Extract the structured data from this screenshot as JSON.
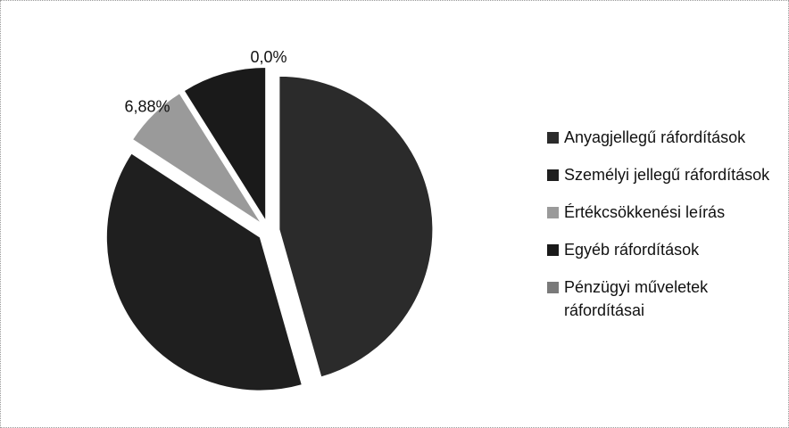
{
  "chart_data": {
    "type": "pie",
    "categories": [
      "Anyagjellegű ráfordítások",
      "Személyi jellegű ráfordítások",
      "Értékcsökkenési leírás",
      "Egyéb ráfordítások",
      "Pénzügyi műveletek ráfordításai"
    ],
    "values": [
      45.6,
      38.6,
      6.88,
      8.92,
      0
    ],
    "value_labels": [
      null,
      null,
      "6,88%",
      null,
      "0,0%"
    ],
    "colors": [
      "#2b2b2b",
      "#1f1f1f",
      "#9a9a9a",
      "#1a1a1a",
      "#7a7a7a"
    ],
    "legend": "right"
  }
}
